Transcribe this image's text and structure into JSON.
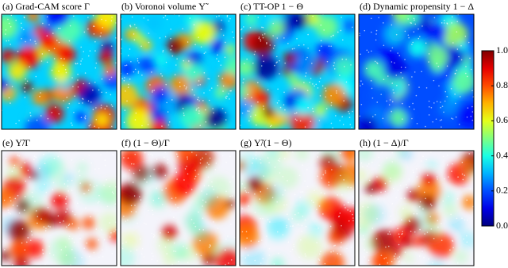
{
  "chart_data": {
    "type": "heatmap-grid",
    "panels": [
      "(a) Grad-CAM score Γ",
      "(b) Voronoi volume Υ̃",
      "(c) TT-OP 1 − Θ",
      "(d) Dynamic propensity 1 − Δ",
      "(e) Υ̃/Γ",
      "(f) (1 − Θ)/Γ",
      "(g) Υ̃/(1 − Θ)",
      "(h) (1 − Δ)/Γ"
    ],
    "colormap": "jet",
    "ylim": [
      0,
      1
    ],
    "yticks": [
      {
        "value": 0,
        "label": "0.0"
      },
      0.2,
      0.4,
      0.6,
      0.8,
      {
        "value": 1,
        "label": "1.0"
      }
    ]
  }
}
